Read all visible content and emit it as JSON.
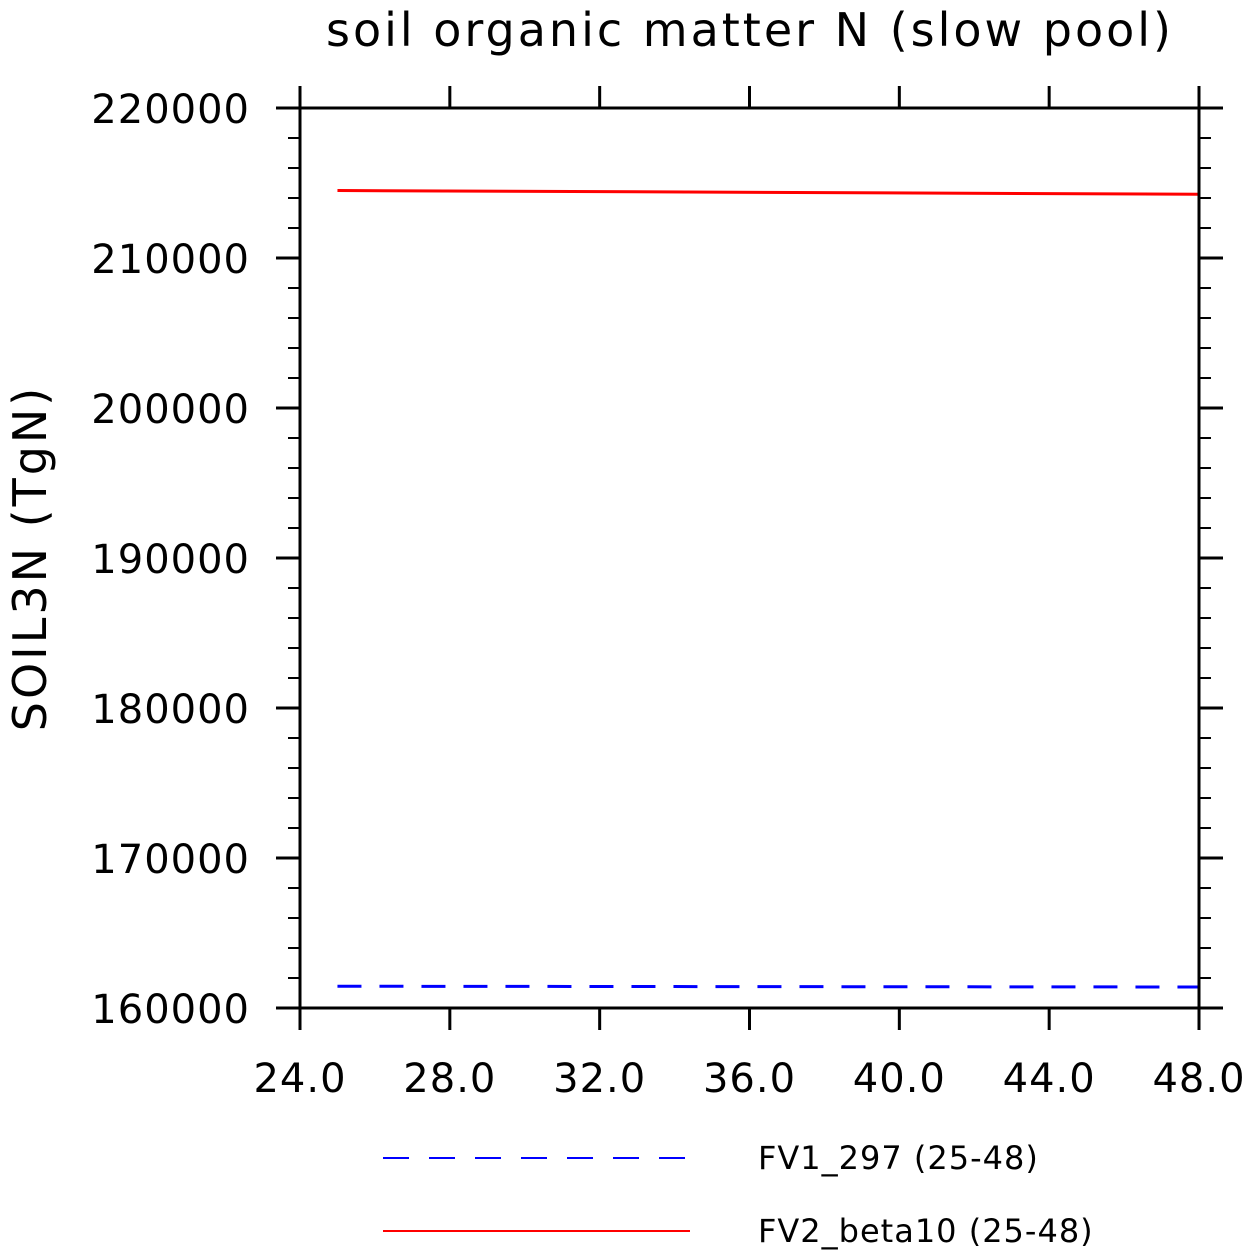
{
  "chart_data": {
    "type": "line",
    "title": "soil organic matter N (slow pool)",
    "xlabel": "",
    "ylabel": "SOIL3N   (TgN)",
    "xlim": [
      24,
      48
    ],
    "ylim": [
      160000,
      220000
    ],
    "x_ticks": [
      24,
      28,
      32,
      36,
      40,
      44,
      48
    ],
    "x_tick_labels": [
      "24.0",
      "28.0",
      "32.0",
      "36.0",
      "40.0",
      "44.0",
      "48.0"
    ],
    "y_ticks": [
      160000,
      170000,
      180000,
      190000,
      200000,
      210000,
      220000
    ],
    "y_tick_labels": [
      "160000",
      "170000",
      "180000",
      "190000",
      "200000",
      "210000",
      "220000"
    ],
    "grid": false,
    "legend_position": "bottom",
    "series": [
      {
        "name": "FV1_297 (25-48)",
        "color": "#0000ff",
        "style": "dashed",
        "x": [
          25,
          48
        ],
        "y": [
          161450,
          161400
        ]
      },
      {
        "name": "FV2_beta10 (25-48)",
        "color": "#ff0000",
        "style": "solid",
        "x": [
          25,
          48
        ],
        "y": [
          214500,
          214250
        ]
      }
    ]
  }
}
